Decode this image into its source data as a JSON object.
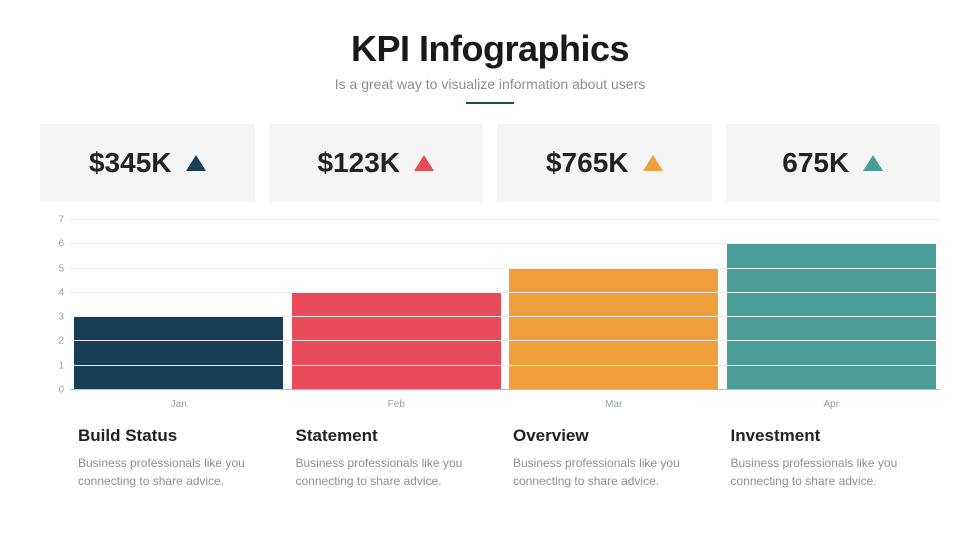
{
  "header": {
    "title": "KPI Infographics",
    "subtitle": "Is a great way to visualize information about users",
    "title_color": "#1a1a1a",
    "subtitle_color": "#8a8f94",
    "divider_color": "#1b4d4a",
    "title_fontsize": 36,
    "subtitle_fontsize": 14
  },
  "kpi": {
    "card_bg": "#f5f5f5",
    "value_fontsize": 28,
    "items": [
      {
        "value": "$345K",
        "arrow_color": "#173d57"
      },
      {
        "value": "$123K",
        "arrow_color": "#e94b5b"
      },
      {
        "value": "$765K",
        "arrow_color": "#f0a03a"
      },
      {
        "value": "675K",
        "arrow_color": "#4a9d96"
      }
    ]
  },
  "chart": {
    "type": "bar",
    "ylim": [
      0,
      7
    ],
    "ytick_step": 1,
    "yticks": [
      "0",
      "1",
      "2",
      "3",
      "4",
      "5",
      "6",
      "7"
    ],
    "grid_color": "#eeeeee",
    "axis_label_color": "#9aa0a6",
    "baseline_color": "#bbbbbb",
    "background_color": "#ffffff",
    "bar_width_pct": 96,
    "bars": [
      {
        "x": "Jan",
        "value": 3,
        "color": "#173d57"
      },
      {
        "x": "Feb",
        "value": 4,
        "color": "#e94b5b"
      },
      {
        "x": "Mar",
        "value": 5,
        "color": "#f0a03a"
      },
      {
        "x": "Apr",
        "value": 6,
        "color": "#4a9d96"
      }
    ]
  },
  "captions": {
    "title_color": "#222222",
    "desc_color": "#8a8f94",
    "title_fontsize": 17,
    "desc_fontsize": 12,
    "items": [
      {
        "title": "Build Status",
        "desc": "Business professionals like you connecting to share advice."
      },
      {
        "title": "Statement",
        "desc": "Business professionals like you connecting to share advice."
      },
      {
        "title": "Overview",
        "desc": "Business professionals like you connecting to share advice."
      },
      {
        "title": "Investment",
        "desc": "Business professionals like you connecting to share advice."
      }
    ]
  }
}
